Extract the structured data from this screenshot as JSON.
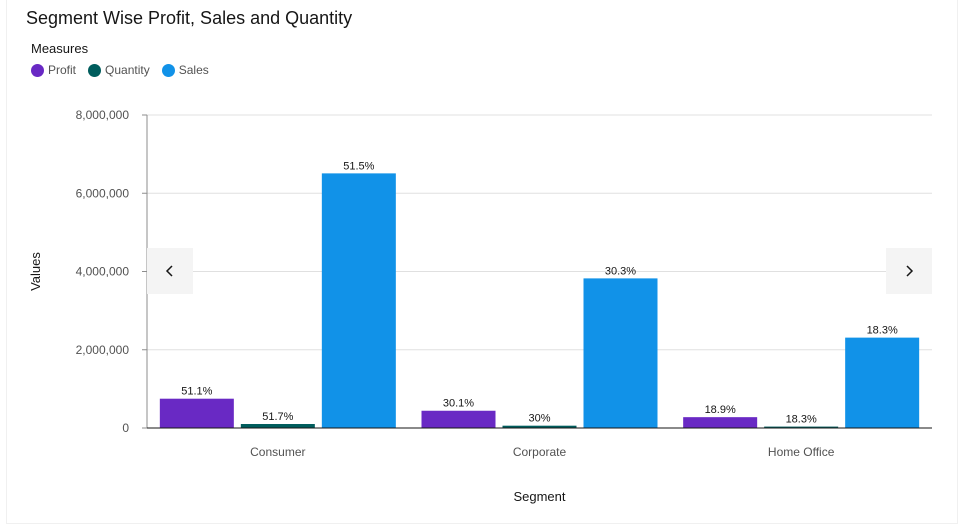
{
  "title": "Segment Wise Profit, Sales and Quantity",
  "legend": {
    "title": "Measures",
    "items": [
      {
        "label": "Profit",
        "color": "#6929c4"
      },
      {
        "label": "Quantity",
        "color": "#005d5d"
      },
      {
        "label": "Sales",
        "color": "#1192e8"
      }
    ]
  },
  "nav": {
    "prev_icon": "chevron-left-icon",
    "next_icon": "chevron-right-icon"
  },
  "chart_data": {
    "type": "bar",
    "title": "Segment Wise Profit, Sales and Quantity",
    "xlabel": "Segment",
    "ylabel": "Values",
    "categories": [
      "Consumer",
      "Corporate",
      "Home Office"
    ],
    "series": [
      {
        "name": "Profit",
        "color": "#6929c4",
        "values": [
          749000,
          441000,
          277000
        ],
        "labels": [
          "51.1%",
          "30.1%",
          "18.9%"
        ]
      },
      {
        "name": "Quantity",
        "color": "#005d5d",
        "values": [
          102000,
          59000,
          36000
        ],
        "labels": [
          "51.7%",
          "30%",
          "18.3%"
        ]
      },
      {
        "name": "Sales",
        "color": "#1192e8",
        "values": [
          6508000,
          3824000,
          2310000
        ],
        "labels": [
          "51.5%",
          "30.3%",
          "18.3%"
        ]
      }
    ],
    "ylim": [
      0,
      8000000
    ],
    "yticks": [
      "0",
      "2,000,000",
      "4,000,000",
      "6,000,000",
      "8,000,000"
    ],
    "ytick_values": [
      0,
      2000000,
      4000000,
      6000000,
      8000000
    ],
    "grid": true,
    "legend_position": "top-left"
  }
}
